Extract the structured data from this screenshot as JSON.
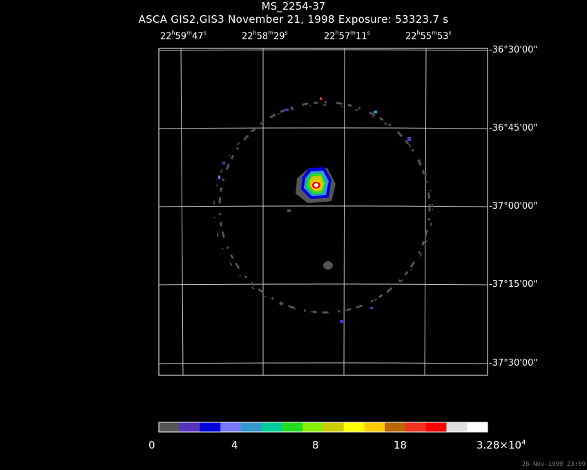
{
  "header": {
    "title": "MS_2254-37",
    "subtitle": "ASCA GIS2,GIS3 November 21, 1998 Exposure: 53323.7 s"
  },
  "ra_labels": [
    {
      "h": "22",
      "m": "59",
      "s": "47"
    },
    {
      "h": "22",
      "m": "58",
      "s": "29"
    },
    {
      "h": "22",
      "m": "57",
      "s": "11"
    },
    {
      "h": "22",
      "m": "55",
      "s": "53"
    }
  ],
  "dec_labels": [
    "-36°30'00\"",
    "-36°45'00\"",
    "-37°00'00\"",
    "-37°15'00\"",
    "-37°30'00\""
  ],
  "colorbar": {
    "colors": [
      "#555555",
      "#5533bb",
      "#0000dd",
      "#7777ff",
      "#3399cc",
      "#00cc99",
      "#22dd22",
      "#88ee00",
      "#cccc00",
      "#ffff00",
      "#ffcc00",
      "#bb6600",
      "#ee3322",
      "#ff0000",
      "#e0e0e0",
      "#ffffff"
    ],
    "labels": [
      "0",
      "4",
      "8",
      "18"
    ],
    "max_label_base": "3.28×10",
    "max_label_exp": "4"
  },
  "timestamp": "26-Nov-1999 23:09"
}
